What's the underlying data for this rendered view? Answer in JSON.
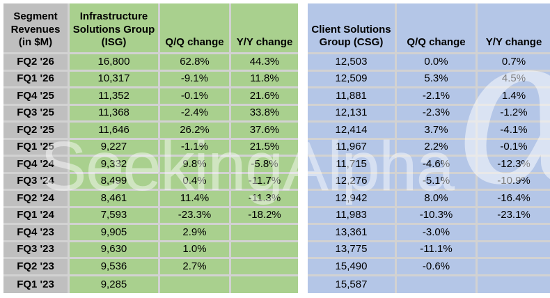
{
  "colors": {
    "label_gray": "#BFBFBF",
    "isg_green": "#A9D08E",
    "csg_blue": "#B4C6E7",
    "gridline": "#D2D2D2",
    "background": "#FFFFFF",
    "text": "#000000"
  },
  "header": {
    "corner": "Segment\nRevenues\n(in $M)",
    "isg_label": "Infrastructure\nSolutions Group\n(ISG)",
    "isg_qq": "Q/Q change",
    "isg_yy": "Y/Y change",
    "csg_label": "Client Solutions\nGroup (CSG)",
    "csg_qq": "Q/Q change",
    "csg_yy": "Y/Y change"
  },
  "watermark": {
    "text": "SeekingAlpha",
    "alpha_glyph": "α"
  },
  "chart_data": {
    "type": "table",
    "title": "Segment Revenues (in $M)",
    "columns": [
      "Segment Revenues (in $M)",
      "Infrastructure Solutions Group (ISG)",
      "Q/Q change",
      "Y/Y change",
      "Client Solutions Group (CSG)",
      "Q/Q change",
      "Y/Y change"
    ],
    "rows": [
      [
        "FQ2 '26",
        "16,800",
        "62.8%",
        "44.3%",
        "12,503",
        "0.0%",
        "0.7%"
      ],
      [
        "FQ1 '26",
        "10,317",
        "-9.1%",
        "11.8%",
        "12,509",
        "5.3%",
        "4.5%"
      ],
      [
        "FQ4 '25",
        "11,352",
        "-0.1%",
        "21.6%",
        "11,881",
        "-2.1%",
        "1.4%"
      ],
      [
        "FQ3 '25",
        "11,368",
        "-2.4%",
        "33.8%",
        "12,131",
        "-2.3%",
        "-1.2%"
      ],
      [
        "FQ2 '25",
        "11,646",
        "26.2%",
        "37.6%",
        "12,414",
        "3.7%",
        "-4.1%"
      ],
      [
        "FQ1 '25",
        "9,227",
        "-1.1%",
        "21.5%",
        "11,967",
        "2.2%",
        "-0.1%"
      ],
      [
        "FQ4 '24",
        "9,332",
        "9.8%",
        "-5.8%",
        "11,715",
        "-4.6%",
        "-12.3%"
      ],
      [
        "FQ3 '24",
        "8,499",
        "0.4%",
        "-11.7%",
        "12,276",
        "-5.1%",
        "-10.9%"
      ],
      [
        "FQ2 '24",
        "8,461",
        "11.4%",
        "-11.3%",
        "12,942",
        "8.0%",
        "-16.4%"
      ],
      [
        "FQ1 '24",
        "7,593",
        "-23.3%",
        "-18.2%",
        "11,983",
        "-10.3%",
        "-23.1%"
      ],
      [
        "FQ4 '23",
        "9,905",
        "2.9%",
        "",
        "13,361",
        "-3.0%",
        ""
      ],
      [
        "FQ3 '23",
        "9,630",
        "1.0%",
        "",
        "13,775",
        "-11.1%",
        ""
      ],
      [
        "FQ2 '23",
        "9,536",
        "2.7%",
        "",
        "15,490",
        "-0.6%",
        ""
      ],
      [
        "FQ1 '23",
        "9,285",
        "",
        "",
        "15,587",
        "",
        ""
      ]
    ]
  }
}
